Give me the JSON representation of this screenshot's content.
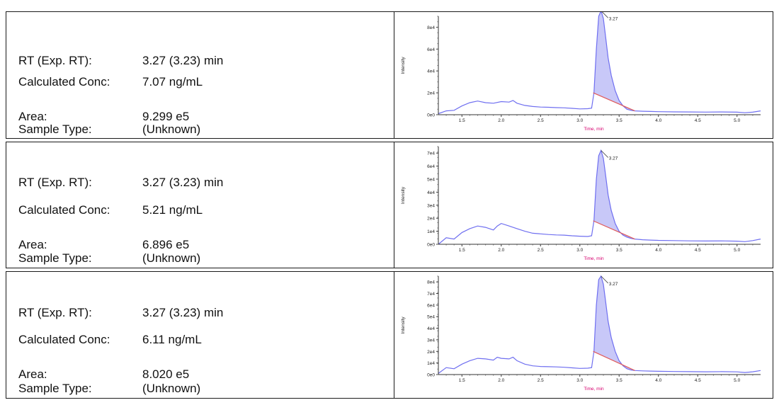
{
  "rows": [
    {
      "fields": [
        {
          "label": "RT (Exp. RT):",
          "value": "3.27 (3.23) min"
        },
        {
          "label": "Calculated Conc:",
          "value": "7.07 ng/mL"
        },
        {
          "label": "Area:",
          "value": "9.299 e5"
        },
        {
          "label": "Sample Type:",
          "value": "(Unknown)"
        }
      ]
    },
    {
      "fields": [
        {
          "label": "RT (Exp. RT):",
          "value": "3.27 (3.23) min"
        },
        {
          "label": "Calculated Conc:",
          "value": "5.21 ng/mL"
        },
        {
          "label": "Area:",
          "value": "6.896 e5"
        },
        {
          "label": "Sample Type:",
          "value": "(Unknown)"
        }
      ]
    },
    {
      "fields": [
        {
          "label": "RT (Exp. RT):",
          "value": "3.27 (3.23) min"
        },
        {
          "label": "Calculated Conc:",
          "value": "6.11 ng/mL"
        },
        {
          "label": "Area:",
          "value": "8.020 e5"
        },
        {
          "label": "Sample Type:",
          "value": "(Unknown)"
        }
      ]
    }
  ],
  "colors": {
    "trace": "#6f6ff0",
    "fill": "#c8c8f8",
    "baseline": "#e05a5a",
    "xlabel": "#d6006e",
    "border": "#1a1a1a"
  },
  "chart_data": [
    {
      "type": "line",
      "xlabel": "Time, min",
      "ylabel": "Intensity",
      "xlim": [
        1.2,
        5.3
      ],
      "ylim": [
        0,
        90000
      ],
      "x_ticks": [
        "1.5",
        "2.0",
        "2.5",
        "3.0",
        "3.5",
        "4.0",
        "4.5",
        "5.0"
      ],
      "y_ticks": [
        "0e0",
        "2e4",
        "4e4",
        "6e4",
        "8e4"
      ],
      "y_tick_values": [
        0,
        20000,
        40000,
        60000,
        80000
      ],
      "peak_label": "3.27",
      "peak_rt": 3.27,
      "integration": [
        3.17,
        3.7
      ],
      "x": [
        1.2,
        1.3,
        1.4,
        1.5,
        1.6,
        1.7,
        1.8,
        1.9,
        2.0,
        2.1,
        2.15,
        2.2,
        2.3,
        2.4,
        2.5,
        2.6,
        2.7,
        2.8,
        2.9,
        3.0,
        3.1,
        3.15,
        3.18,
        3.21,
        3.24,
        3.27,
        3.3,
        3.33,
        3.36,
        3.4,
        3.45,
        3.5,
        3.55,
        3.6,
        3.65,
        3.7,
        3.8,
        3.9,
        4.0,
        4.2,
        4.4,
        4.6,
        4.8,
        5.0,
        5.1,
        5.2,
        5.3
      ],
      "y": [
        1000,
        3500,
        4000,
        8000,
        11000,
        12500,
        11000,
        10500,
        12000,
        11500,
        13000,
        10500,
        8500,
        7500,
        7000,
        6800,
        6500,
        6300,
        5800,
        5300,
        5500,
        6000,
        20000,
        60000,
        90000,
        95000,
        88000,
        70000,
        52000,
        36000,
        22000,
        13000,
        8000,
        5000,
        4000,
        3500,
        3200,
        3000,
        2800,
        2600,
        2500,
        2400,
        2500,
        2300,
        1800,
        2300,
        3500
      ]
    },
    {
      "type": "line",
      "xlabel": "Time, min",
      "ylabel": "Intensity",
      "xlim": [
        1.2,
        5.3
      ],
      "ylim": [
        0,
        75000
      ],
      "x_ticks": [
        "1.5",
        "2.0",
        "2.5",
        "3.0",
        "3.5",
        "4.0",
        "4.5",
        "5.0"
      ],
      "y_ticks": [
        "0e0",
        "1e4",
        "2e4",
        "3e4",
        "4e4",
        "5e4",
        "6e4",
        "7e4"
      ],
      "y_tick_values": [
        0,
        10000,
        20000,
        30000,
        40000,
        50000,
        60000,
        70000
      ],
      "peak_label": "3.27",
      "peak_rt": 3.27,
      "integration": [
        3.17,
        3.7
      ],
      "x": [
        1.2,
        1.3,
        1.4,
        1.5,
        1.6,
        1.7,
        1.8,
        1.9,
        1.95,
        2.0,
        2.1,
        2.2,
        2.3,
        2.4,
        2.5,
        2.6,
        2.7,
        2.8,
        2.9,
        3.0,
        3.1,
        3.15,
        3.18,
        3.21,
        3.24,
        3.27,
        3.3,
        3.33,
        3.36,
        3.4,
        3.45,
        3.5,
        3.55,
        3.6,
        3.65,
        3.7,
        3.8,
        3.9,
        4.0,
        4.2,
        4.4,
        4.6,
        4.8,
        5.0,
        5.1,
        5.2,
        5.3
      ],
      "y": [
        0,
        5000,
        4000,
        9000,
        12000,
        14000,
        13000,
        11000,
        14000,
        16000,
        14000,
        12000,
        10000,
        8500,
        8000,
        7500,
        7200,
        7000,
        6500,
        6200,
        6000,
        6500,
        18000,
        50000,
        68000,
        72000,
        66000,
        52000,
        38000,
        26000,
        16000,
        10000,
        7000,
        5500,
        4500,
        4000,
        3500,
        3200,
        3000,
        2800,
        2600,
        2500,
        2600,
        2400,
        2000,
        2800,
        4000
      ]
    },
    {
      "type": "line",
      "xlabel": "Time, min",
      "ylabel": "Intensity",
      "xlim": [
        1.2,
        5.3
      ],
      "ylim": [
        0,
        85000
      ],
      "x_ticks": [
        "1.5",
        "2.0",
        "2.5",
        "3.0",
        "3.5",
        "4.0",
        "4.5",
        "5.0"
      ],
      "y_ticks": [
        "0e0",
        "1e4",
        "2e4",
        "3e4",
        "4e4",
        "5e4",
        "6e4",
        "7e4",
        "8e4"
      ],
      "y_tick_values": [
        0,
        10000,
        20000,
        30000,
        40000,
        50000,
        60000,
        70000,
        80000
      ],
      "peak_label": "3.27",
      "peak_rt": 3.27,
      "integration": [
        3.17,
        3.7
      ],
      "x": [
        1.2,
        1.3,
        1.4,
        1.5,
        1.6,
        1.7,
        1.8,
        1.9,
        1.95,
        2.0,
        2.1,
        2.15,
        2.2,
        2.3,
        2.4,
        2.5,
        2.6,
        2.7,
        2.8,
        2.9,
        3.0,
        3.1,
        3.15,
        3.18,
        3.21,
        3.24,
        3.27,
        3.3,
        3.33,
        3.36,
        3.4,
        3.45,
        3.5,
        3.55,
        3.6,
        3.65,
        3.7,
        3.8,
        3.9,
        4.0,
        4.2,
        4.4,
        4.6,
        4.8,
        5.0,
        5.1,
        5.2,
        5.3
      ],
      "y": [
        1000,
        6000,
        5000,
        9000,
        12000,
        14000,
        13500,
        12500,
        15000,
        14000,
        13500,
        15000,
        12000,
        9000,
        7500,
        7000,
        6800,
        6600,
        6300,
        5800,
        5300,
        5500,
        6000,
        20000,
        60000,
        82000,
        85000,
        78000,
        62000,
        46000,
        32000,
        20000,
        12000,
        7500,
        5000,
        4000,
        3500,
        3200,
        3000,
        2800,
        2600,
        2500,
        2400,
        2500,
        2300,
        1800,
        2400,
        3500
      ]
    }
  ]
}
